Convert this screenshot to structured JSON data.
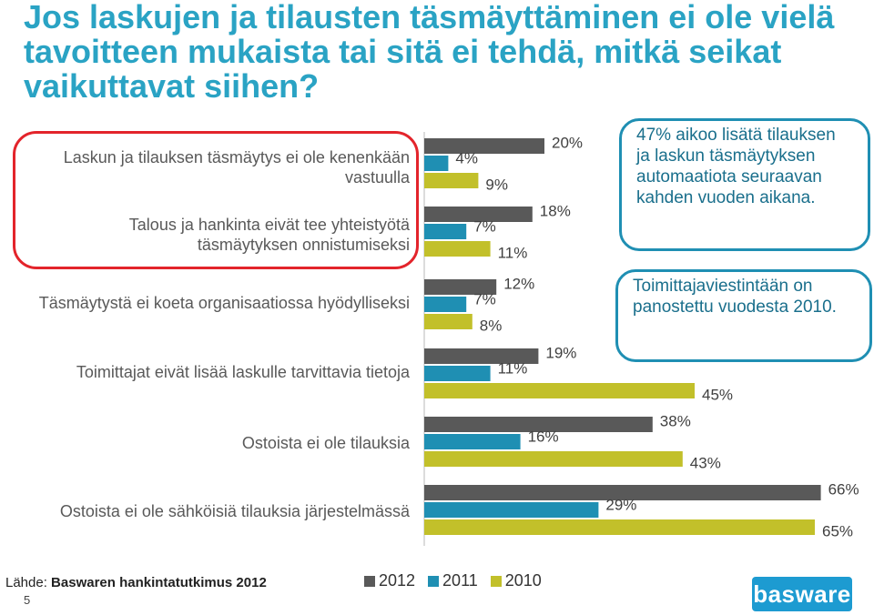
{
  "title": "Jos laskujen ja tilausten täsmäyttäminen ei ole vielä tavoitteen mukaista tai sitä ei tehdä, mitkä seikat vaikuttavat siihen?",
  "notes": [
    "47% aikoo  lisätä tilauksen ja laskun täsmäytyksen automaatiota seuraavan kahden vuoden aikana.",
    "Toimittajaviestintään on panostettu vuodesta 2010."
  ],
  "source_prefix": "Lähde: ",
  "source_bold": "Baswaren hankintatutkimus 2012",
  "page_number": "5",
  "logo_text": "basware",
  "colors": {
    "2012": "#595959",
    "2011": "#1f8fb3",
    "2010": "#c2c02a",
    "title": "#2aa3c4",
    "highlight": "#e3242b"
  },
  "chart_data": {
    "type": "bar",
    "orientation": "horizontal",
    "categories": [
      "Laskun ja tilauksen täsmäytys ei ole kenenkään\nvastuulla",
      "Talous ja hankinta eivät tee yhteistyötä\ntäsmäytyksen onnistumiseksi",
      "Täsmäytystä ei koeta organisaatiossa hyödylliseksi",
      "Toimittajat eivät lisää laskulle tarvittavia tietoja",
      "Ostoista ei ole tilauksia",
      "Ostoista ei ole sähköisiä tilauksia järjestelmässä"
    ],
    "series": [
      {
        "name": "2012",
        "values": [
          20,
          18,
          12,
          19,
          38,
          66
        ]
      },
      {
        "name": "2011",
        "values": [
          4,
          7,
          7,
          11,
          16,
          29
        ]
      },
      {
        "name": "2010",
        "values": [
          9,
          11,
          8,
          45,
          43,
          65
        ]
      }
    ],
    "value_labels": [
      [
        "20%",
        "18%",
        "12%",
        "19%",
        "38%",
        "66%"
      ],
      [
        "4%",
        "7%",
        "7%",
        "11%",
        "16%",
        "29%"
      ],
      [
        "9%",
        "11%",
        "8%",
        "45%",
        "43%",
        "65%"
      ]
    ],
    "legend": [
      "2012",
      "2011",
      "2010"
    ],
    "legend_position": "bottom",
    "highlighted_categories": [
      0,
      1
    ],
    "grid": false
  }
}
